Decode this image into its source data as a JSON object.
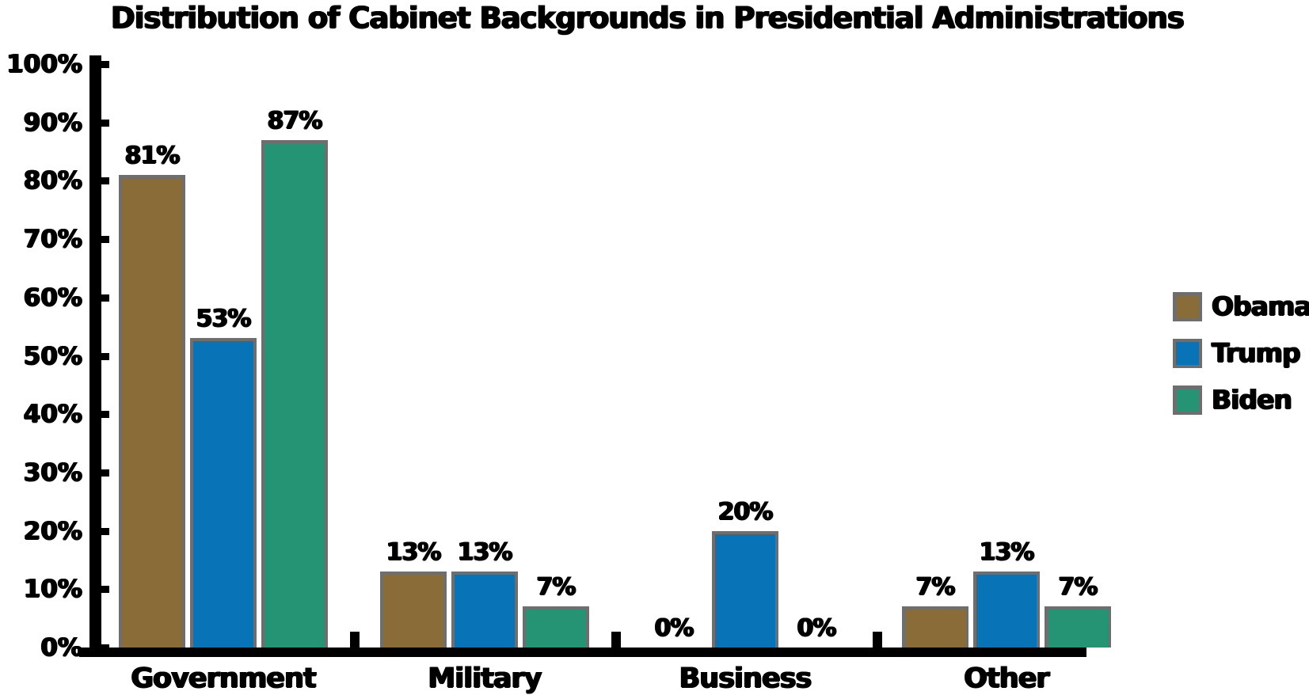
{
  "chart_data": {
    "type": "bar",
    "title": "Distribution of Cabinet Backgrounds in Presidential Administrations",
    "categories": [
      "Government",
      "Military",
      "Business",
      "Other"
    ],
    "series": [
      {
        "name": "Obama",
        "color": "#8a6c39",
        "values": [
          81,
          13,
          0,
          7
        ],
        "labels": [
          "81%",
          "13%",
          "0%",
          "7%"
        ]
      },
      {
        "name": "Trump",
        "color": "#0873b7",
        "values": [
          53,
          13,
          20,
          13
        ],
        "labels": [
          "53%",
          "13%",
          "20%",
          "13%"
        ]
      },
      {
        "name": "Biden",
        "color": "#259474",
        "values": [
          87,
          7,
          0,
          7
        ],
        "labels": [
          "87%",
          "7%",
          "0%",
          "7%"
        ]
      }
    ],
    "y_axis": {
      "ticks": [
        "0%",
        "10%",
        "20%",
        "30%",
        "40%",
        "50%",
        "60%",
        "70%",
        "80%",
        "90%",
        "100%"
      ],
      "ylim": [
        0,
        100
      ]
    },
    "xlabel": "",
    "ylabel": "",
    "grid": false,
    "legend": {
      "position": "right"
    },
    "bar_edge_color": "#6e6e6e",
    "axis_color": "#000000",
    "text_color": "#000000",
    "background_color": "#ffffff"
  }
}
